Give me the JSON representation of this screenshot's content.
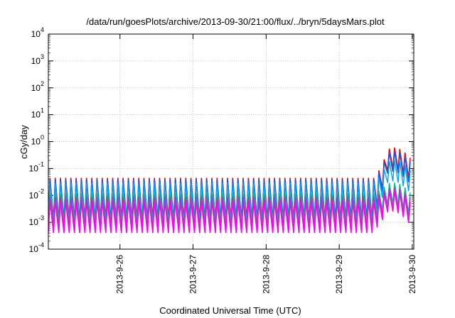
{
  "chart_data": {
    "type": "line",
    "title": "/data/run/goesPlots/archive/2013-09-30/21:00/flux/../bryn/5daysMars.plot",
    "xlabel": "Coordinated Universal Time (UTC)",
    "ylabel": "cGy/day",
    "yscale": "log",
    "ylim": [
      0.0001,
      10000
    ],
    "xlim_days": [
      0,
      5
    ],
    "grid": true,
    "y_ticks": [
      {
        "base": "10",
        "exp": "-4"
      },
      {
        "base": "10",
        "exp": "-3"
      },
      {
        "base": "10",
        "exp": "-2"
      },
      {
        "base": "10",
        "exp": "-1"
      },
      {
        "base": "10",
        "exp": "0"
      },
      {
        "base": "10",
        "exp": "1"
      },
      {
        "base": "10",
        "exp": "2"
      },
      {
        "base": "10",
        "exp": "3"
      },
      {
        "base": "10",
        "exp": "4"
      }
    ],
    "x_ticks": [
      {
        "label": "2013-9-26",
        "day": 0.98
      },
      {
        "label": "2013-9-27",
        "day": 1.98
      },
      {
        "label": "2013-9-28",
        "day": 2.98
      },
      {
        "label": "2013-9-29",
        "day": 3.98
      },
      {
        "label": "2013-9-30",
        "day": 4.98
      }
    ],
    "oscillation_cycles": 70,
    "series": [
      {
        "color": "#ff0000",
        "width": 1.6,
        "low": 0.0012,
        "high": 0.045,
        "event_peak": 0.6,
        "event_end": 0.11
      },
      {
        "color": "#2255dd",
        "width": 1.6,
        "low": 0.001,
        "high": 0.04,
        "event_peak": 0.45,
        "event_end": 0.08
      },
      {
        "color": "#00a0ff",
        "width": 1.4,
        "low": 0.0009,
        "high": 0.03,
        "event_peak": 0.2,
        "event_end": 0.04
      },
      {
        "color": "#00c090",
        "width": 1.4,
        "low": 0.0011,
        "high": 0.012,
        "event_peak": 0.03,
        "event_end": 0.006
      },
      {
        "color": "#a040a0",
        "width": 1.4,
        "low": 0.0007,
        "high": 0.009,
        "event_peak": 0.02,
        "event_end": 0.004
      },
      {
        "color": "#ff00ff",
        "width": 1.6,
        "low": 0.0004,
        "high": 0.006,
        "event_peak": 0.015,
        "event_end": 0.002
      }
    ]
  }
}
